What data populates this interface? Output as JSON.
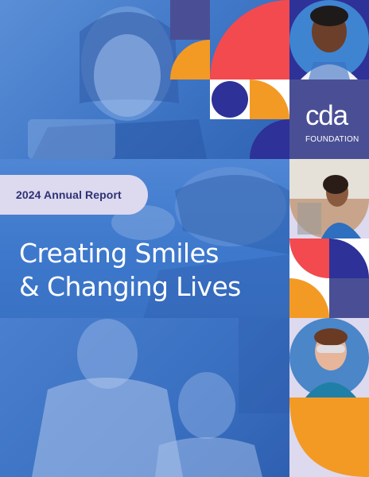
{
  "report": {
    "tag_label": "2024 Annual Report",
    "headline_line1": "Creating Smiles",
    "headline_line2": "& Changing Lives"
  },
  "logo": {
    "mark": "cda",
    "sub": "FOUNDATION"
  },
  "colors": {
    "navy": "#2e3198",
    "purple": "#4a4f95",
    "coral": "#f24a4f",
    "orange": "#f39a25",
    "lavender": "#ddd9ef",
    "photo_blue": "#3f76c6"
  }
}
